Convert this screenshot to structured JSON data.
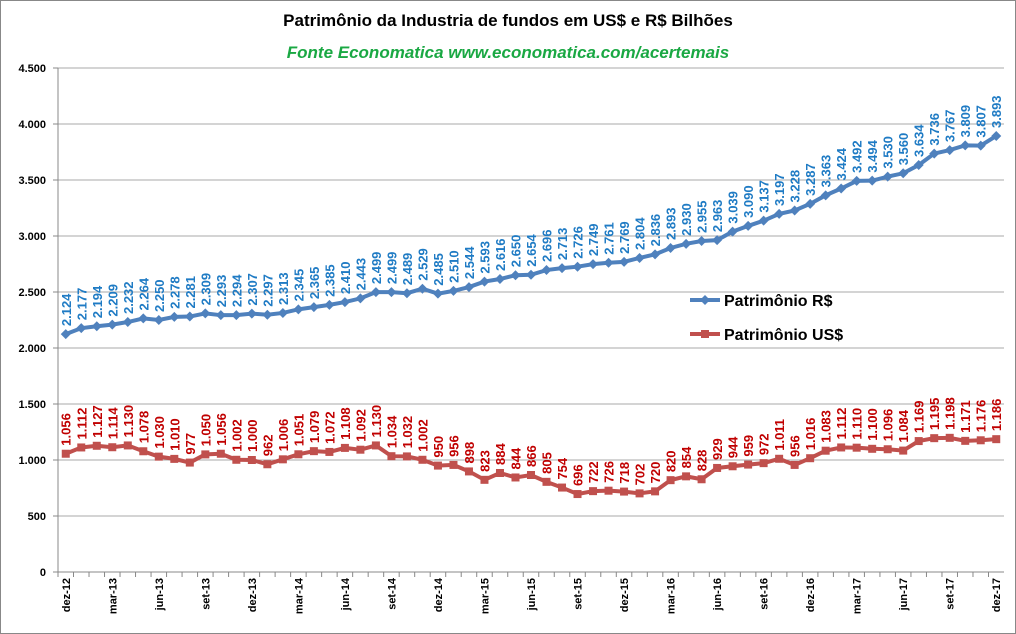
{
  "chart_data": {
    "type": "line",
    "title": "Patrimônio da Industria de fundos em US$ e R$ Bilhões",
    "subtitle": "Fonte Economatica  www.economatica.com/acertemais",
    "categories": [
      "dez-12",
      null,
      null,
      "mar-13",
      null,
      null,
      "jun-13",
      null,
      null,
      "set-13",
      null,
      null,
      "dez-13",
      null,
      null,
      "mar-14",
      null,
      null,
      "jun-14",
      null,
      null,
      "set-14",
      null,
      null,
      "dez-14",
      null,
      null,
      "mar-15",
      null,
      null,
      "jun-15",
      null,
      null,
      "set-15",
      null,
      null,
      "dez-15",
      null,
      null,
      "mar-16",
      null,
      null,
      "jun-16",
      null,
      null,
      "set-16",
      null,
      null,
      "dez-16",
      null,
      null,
      "mar-17",
      null,
      null,
      "jun-17",
      null,
      null,
      "set-17",
      null,
      null,
      "dez-17"
    ],
    "series": [
      {
        "name": "Patrimônio R$",
        "color": "#4f81bd",
        "label_color": "#1f7bc4",
        "marker": "diamond",
        "values": [
          2124,
          2177,
          2194,
          2209,
          2232,
          2264,
          2250,
          2278,
          2281,
          2309,
          2293,
          2294,
          2307,
          2297,
          2313,
          2345,
          2365,
          2385,
          2410,
          2443,
          2499,
          2499,
          2489,
          2529,
          2485,
          2510,
          2544,
          2593,
          2616,
          2650,
          2654,
          2696,
          2713,
          2726,
          2749,
          2761,
          2769,
          2804,
          2836,
          2893,
          2930,
          2955,
          2963,
          3039,
          3090,
          3137,
          3197,
          3228,
          3287,
          3363,
          3424,
          3492,
          3494,
          3530,
          3560,
          3634,
          3736,
          3767,
          3809,
          3807,
          3893
        ],
        "value_labels": [
          "2.124",
          "2.177",
          "2.194",
          "2.209",
          "2.232",
          "2.264",
          "2.250",
          "2.278",
          "2.281",
          "2.309",
          "2.293",
          "2.294",
          "2.307",
          "2.297",
          "2.313",
          "2.345",
          "2.365",
          "2.385",
          "2.410",
          "2.443",
          "2.499",
          "2.499",
          "2.489",
          "2.529",
          "2.485",
          "2.510",
          "2.544",
          "2.593",
          "2.616",
          "2.650",
          "2.654",
          "2.696",
          "2.713",
          "2.726",
          "2.749",
          "2.761",
          "2.769",
          "2.804",
          "2.836",
          "2.893",
          "2.930",
          "2.955",
          "2.963",
          "3.039",
          "3.090",
          "3.137",
          "3.197",
          "3.228",
          "3.287",
          "3.363",
          "3.424",
          "3.492",
          "3.494",
          "3.530",
          "3.560",
          "3.634",
          "3.736",
          "3.767",
          "3.809",
          "3.807",
          "3.893"
        ]
      },
      {
        "name": "Patrimônio US$",
        "color": "#c0504d",
        "label_color": "#c00000",
        "marker": "square",
        "values": [
          1056,
          1112,
          1127,
          1114,
          1130,
          1078,
          1030,
          1010,
          977,
          1050,
          1056,
          1002,
          1000,
          962,
          1006,
          1051,
          1079,
          1072,
          1108,
          1092,
          1130,
          1034,
          1032,
          1002,
          950,
          956,
          898,
          823,
          884,
          844,
          866,
          805,
          754,
          696,
          722,
          726,
          718,
          702,
          720,
          820,
          854,
          828,
          929,
          944,
          959,
          972,
          1011,
          956,
          1016,
          1083,
          1112,
          1110,
          1100,
          1096,
          1084,
          1169,
          1195,
          1198,
          1171,
          1176,
          1186
        ],
        "value_labels": [
          "1.056",
          "1.112",
          "1.127",
          "1.114",
          "1.130",
          "1.078",
          "1.030",
          "1.010",
          "977",
          "1.050",
          "1.056",
          "1.002",
          "1.000",
          "962",
          "1.006",
          "1.051",
          "1.079",
          "1.072",
          "1.108",
          "1.092",
          "1.130",
          "1.034",
          "1.032",
          "1.002",
          "950",
          "956",
          "898",
          "823",
          "884",
          "844",
          "866",
          "805",
          "754",
          "696",
          "722",
          "726",
          "718",
          "702",
          "720",
          "820",
          "854",
          "828",
          "929",
          "944",
          "959",
          "972",
          "1.011",
          "956",
          "1.016",
          "1.083",
          "1.112",
          "1.110",
          "1.100",
          "1.096",
          "1.084",
          "1.169",
          "1.195",
          "1.198",
          "1.171",
          "1.176",
          "1.186"
        ]
      }
    ],
    "ylim": [
      0,
      4500
    ],
    "yticks": [
      0,
      500,
      {
        "value": 1000,
        "label": "1.000"
      },
      {
        "value": 1500,
        "label": "1.500"
      },
      {
        "value": 2000,
        "label": "2.000"
      },
      {
        "value": 2500,
        "label": "2.500"
      },
      {
        "value": 3000,
        "label": "3.000"
      },
      {
        "value": 3500,
        "label": "3.500"
      },
      {
        "value": 4000,
        "label": "4.000"
      },
      {
        "value": 4500,
        "label": "4.500"
      }
    ],
    "grid": true,
    "legend": "right"
  }
}
